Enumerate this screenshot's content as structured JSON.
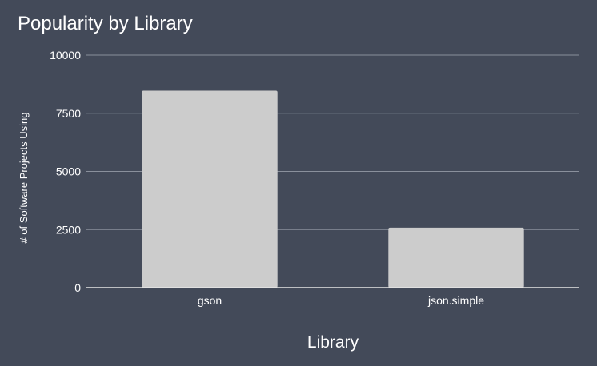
{
  "chart_data": {
    "type": "bar",
    "title": "Popularity by Library",
    "xlabel": "Library",
    "ylabel": "# of Software Projects Using",
    "categories": [
      "gson",
      "json.simple"
    ],
    "values": [
      8470,
      2580
    ],
    "ylim": [
      0,
      10000
    ],
    "yticks": [
      "0",
      "2500",
      "5000",
      "7500",
      "10000"
    ],
    "grid": true,
    "legend": "none"
  },
  "colors": {
    "background": "#434a59",
    "bar": "#cccccc",
    "grid": "#8a909c",
    "axis": "#e6e6e6",
    "text": "#ffffff"
  }
}
